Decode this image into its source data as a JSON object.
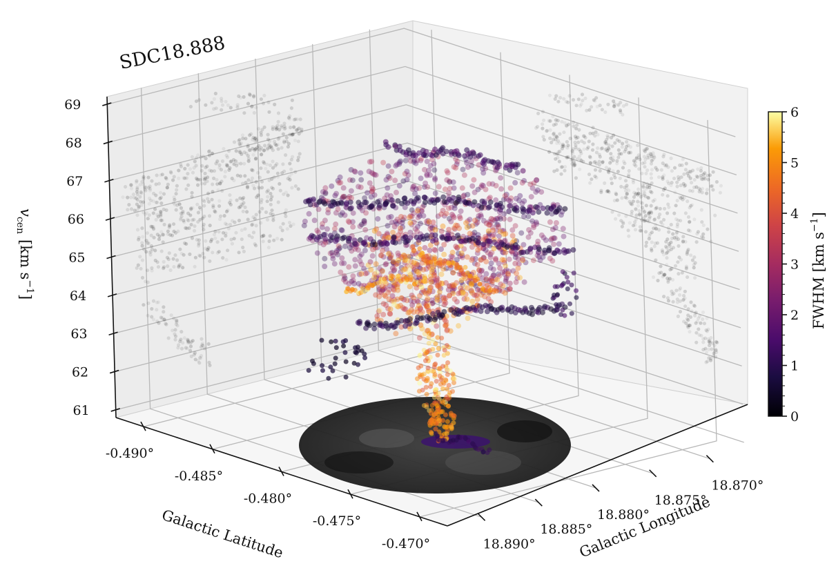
{
  "chart_data": {
    "type": "scatter",
    "title": "SDC18.888",
    "projection": "3d",
    "xlabel": "Galactic Latitude",
    "ylabel": "Galactic Longitude",
    "zlabel": "v_cen [km s^-1]",
    "zlabel_parts": {
      "var": "v",
      "sub": "cen",
      "unit_open": "[km s",
      "unit_exp": "−1",
      "unit_close": "]"
    },
    "x_ticks": [
      "-0.490°",
      "-0.485°",
      "-0.480°",
      "-0.475°",
      "-0.470°"
    ],
    "y_ticks": [
      "18.870°",
      "18.875°",
      "18.880°",
      "18.885°",
      "18.890°"
    ],
    "z_ticks": [
      "61",
      "62",
      "63",
      "64",
      "65",
      "66",
      "67",
      "68",
      "69"
    ],
    "xlim": [
      -0.492,
      -0.468
    ],
    "ylim": [
      18.867,
      18.893
    ],
    "zlim": [
      60.8,
      69.2
    ],
    "grid": true,
    "colorbar": {
      "label": "FWHM [km s^-1]",
      "label_parts": {
        "main": "FWHM [km s",
        "exp": "−1",
        "close": "]"
      },
      "cmap": "inferno",
      "min": 0,
      "max": 6,
      "ticks": [
        "0",
        "1",
        "2",
        "3",
        "4",
        "5",
        "6"
      ]
    },
    "series": [
      {
        "name": "",
        "kind": "3d points",
        "description_values": {
          "z_range": [
            61.4,
            68.8
          ],
          "fwhm_range": [
            0.2,
            6.0
          ]
        }
      },
      {
        "name": "",
        "kind": "projection onto latitude-v_cen wall",
        "color": "#000000"
      },
      {
        "name": "",
        "kind": "projection onto longitude-v_cen wall",
        "color": "#000000"
      },
      {
        "name": "",
        "kind": "sky footprint on floor",
        "color": "#000000"
      }
    ]
  }
}
